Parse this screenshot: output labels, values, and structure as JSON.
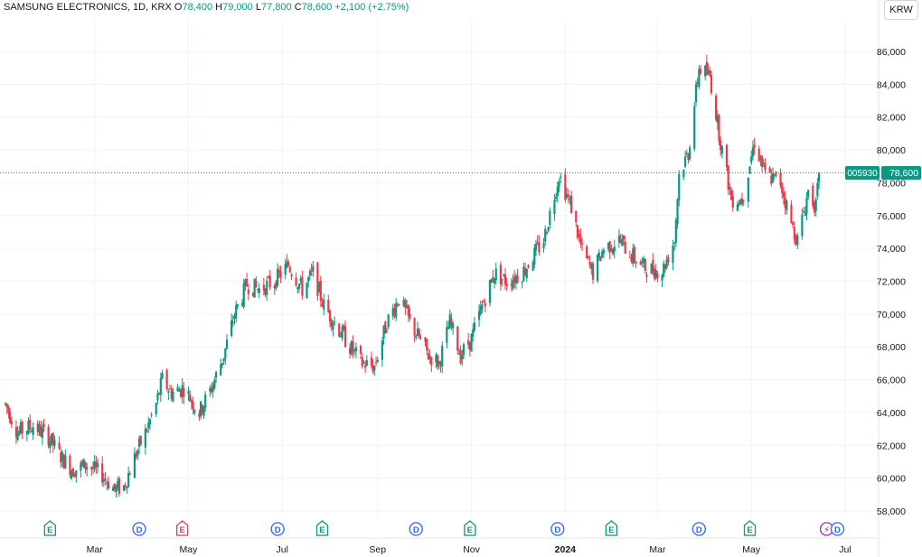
{
  "legend": {
    "symbol": "SAMSUNG ELECTRONICS, 1D, KRX",
    "o_label": "O",
    "o_value": "78,400",
    "h_label": "H",
    "h_value": "79,000",
    "l_label": "L",
    "l_value": "77,800",
    "c_label": "C",
    "c_value": "78,600",
    "change": "+2,100 (+2.75%)"
  },
  "currency_button": "KRW",
  "price_tag": {
    "ticker": "005930",
    "price": "78,600"
  },
  "colors": {
    "up": "#089981",
    "down": "#f23645",
    "event_e": "#089981",
    "event_e_neg": "#f23645",
    "event_d": "#2962ff",
    "event_split": "#9c27b0"
  },
  "chart_data": {
    "type": "candlestick",
    "title": "SAMSUNG ELECTRONICS, 1D, KRX",
    "currency": "KRW",
    "ylim": [
      57000,
      87000
    ],
    "y_ticks": [
      "58,000",
      "60,000",
      "62,000",
      "64,000",
      "66,000",
      "68,000",
      "70,000",
      "72,000",
      "74,000",
      "76,000",
      "78,000",
      "80,000",
      "82,000",
      "84,000",
      "86,000"
    ],
    "y_tick_values": [
      58000,
      60000,
      62000,
      64000,
      66000,
      68000,
      70000,
      72000,
      74000,
      76000,
      78000,
      80000,
      82000,
      84000,
      86000
    ],
    "x_ticks": [
      "Mar",
      "May",
      "Jul",
      "Sep",
      "Nov",
      "2024",
      "Mar",
      "May",
      "Jul"
    ],
    "x_tick_dates": [
      "2023-03-01",
      "2023-05-01",
      "2023-07-01",
      "2023-09-01",
      "2023-11-01",
      "2024-01-01",
      "2024-03-01",
      "2024-05-01",
      "2024-07-01"
    ],
    "last_price": 78600,
    "price_path": [
      [
        "2023-01-02",
        64500
      ],
      [
        "2023-01-10",
        62800
      ],
      [
        "2023-01-20",
        63200
      ],
      [
        "2023-01-30",
        62500
      ],
      [
        "2023-02-08",
        61200
      ],
      [
        "2023-02-15",
        60500
      ],
      [
        "2023-02-24",
        60800
      ],
      [
        "2023-03-06",
        60200
      ],
      [
        "2023-03-14",
        59300
      ],
      [
        "2023-03-20",
        59500
      ],
      [
        "2023-03-28",
        61500
      ],
      [
        "2023-04-04",
        63000
      ],
      [
        "2023-04-10",
        64500
      ],
      [
        "2023-04-14",
        66000
      ],
      [
        "2023-04-20",
        65200
      ],
      [
        "2023-04-28",
        65500
      ],
      [
        "2023-05-08",
        64000
      ],
      [
        "2023-05-16",
        65500
      ],
      [
        "2023-05-24",
        67500
      ],
      [
        "2023-05-31",
        70000
      ],
      [
        "2023-06-08",
        71800
      ],
      [
        "2023-06-16",
        71500
      ],
      [
        "2023-06-26",
        72000
      ],
      [
        "2023-07-05",
        73000
      ],
      [
        "2023-07-14",
        71500
      ],
      [
        "2023-07-21",
        72500
      ],
      [
        "2023-07-28",
        70500
      ],
      [
        "2023-08-04",
        69500
      ],
      [
        "2023-08-14",
        68000
      ],
      [
        "2023-08-22",
        67000
      ],
      [
        "2023-08-30",
        66800
      ],
      [
        "2023-09-07",
        69500
      ],
      [
        "2023-09-15",
        71000
      ],
      [
        "2023-09-22",
        69500
      ],
      [
        "2023-10-04",
        67500
      ],
      [
        "2023-10-11",
        67000
      ],
      [
        "2023-10-18",
        69500
      ],
      [
        "2023-10-25",
        67500
      ],
      [
        "2023-11-01",
        68500
      ],
      [
        "2023-11-08",
        70500
      ],
      [
        "2023-11-16",
        72500
      ],
      [
        "2023-11-24",
        72000
      ],
      [
        "2023-12-04",
        72500
      ],
      [
        "2023-12-11",
        73500
      ],
      [
        "2023-12-18",
        74500
      ],
      [
        "2023-12-28",
        78500
      ],
      [
        "2024-01-05",
        76500
      ],
      [
        "2024-01-12",
        73800
      ],
      [
        "2024-01-19",
        72500
      ],
      [
        "2024-01-26",
        74000
      ],
      [
        "2024-02-05",
        74500
      ],
      [
        "2024-02-14",
        73500
      ],
      [
        "2024-02-22",
        72800
      ],
      [
        "2024-03-04",
        72600
      ],
      [
        "2024-03-12",
        74500
      ],
      [
        "2024-03-15",
        78500
      ],
      [
        "2024-03-21",
        79800
      ],
      [
        "2024-03-28",
        85000
      ],
      [
        "2024-04-04",
        84500
      ],
      [
        "2024-04-11",
        80500
      ],
      [
        "2024-04-18",
        77000
      ],
      [
        "2024-04-25",
        77000
      ],
      [
        "2024-05-03",
        80500
      ],
      [
        "2024-05-10",
        78500
      ],
      [
        "2024-05-20",
        78000
      ],
      [
        "2024-05-27",
        75500
      ],
      [
        "2024-05-31",
        74500
      ],
      [
        "2024-06-07",
        77500
      ],
      [
        "2024-06-12",
        76500
      ],
      [
        "2024-06-14",
        78600
      ]
    ],
    "events": [
      {
        "date": "2023-01-31",
        "type": "earnings",
        "label": "E",
        "positive": true
      },
      {
        "date": "2023-03-30",
        "type": "dividend",
        "label": "D"
      },
      {
        "date": "2023-04-27",
        "type": "earnings",
        "label": "E",
        "positive": false
      },
      {
        "date": "2023-06-28",
        "type": "dividend",
        "label": "D"
      },
      {
        "date": "2023-07-27",
        "type": "earnings",
        "label": "E",
        "positive": true
      },
      {
        "date": "2023-09-26",
        "type": "dividend",
        "label": "D"
      },
      {
        "date": "2023-10-31",
        "type": "earnings",
        "label": "E",
        "positive": true
      },
      {
        "date": "2023-12-27",
        "type": "dividend",
        "label": "D"
      },
      {
        "date": "2024-01-31",
        "type": "earnings",
        "label": "E",
        "positive": true
      },
      {
        "date": "2024-03-28",
        "type": "dividend",
        "label": "D"
      },
      {
        "date": "2024-04-30",
        "type": "earnings",
        "label": "E",
        "positive": true
      },
      {
        "date": "2024-06-19",
        "type": "split",
        "label": "⚡"
      },
      {
        "date": "2024-06-26",
        "type": "dividend",
        "label": "D"
      }
    ]
  }
}
